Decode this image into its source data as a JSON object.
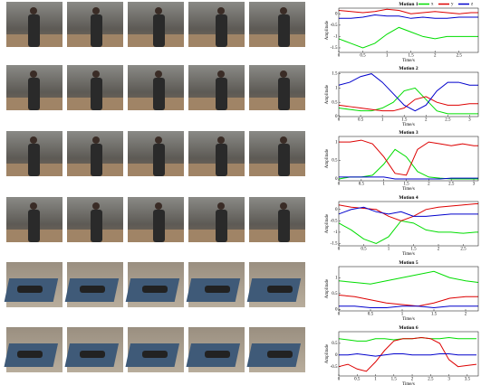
{
  "chart_data": [
    {
      "type": "line",
      "title": "Motion 1",
      "xlabel": "Time/s",
      "ylabel": "Amplitude",
      "legend": "upper right",
      "x": [
        0,
        0.25,
        0.5,
        0.75,
        1,
        1.25,
        1.5,
        1.75,
        2,
        2.25,
        2.5,
        2.75,
        2.9
      ],
      "xlim": [
        0,
        2.9
      ],
      "xticks": [
        0,
        0.5,
        1,
        1.5,
        2,
        2.5
      ],
      "ylim": [
        -1.7,
        0.25
      ],
      "yticks": [
        -1.5,
        -1,
        -0.5,
        0
      ],
      "series": [
        {
          "name": "x",
          "color": "#00dd00",
          "values": [
            -1.1,
            -1.3,
            -1.5,
            -1.3,
            -0.9,
            -0.6,
            -0.8,
            -1.0,
            -1.1,
            -1.0,
            -1.0,
            -1.0,
            -1.0
          ]
        },
        {
          "name": "y",
          "color": "#dd0000",
          "values": [
            0.15,
            0.1,
            0.05,
            0.1,
            0.2,
            0.15,
            0,
            0.05,
            0.1,
            0.05,
            0,
            0.05,
            0.05
          ]
        },
        {
          "name": "z",
          "color": "#0000cc",
          "values": [
            -0.2,
            -0.2,
            -0.15,
            -0.05,
            -0.1,
            -0.1,
            -0.2,
            -0.15,
            -0.2,
            -0.2,
            -0.15,
            -0.15,
            -0.15
          ]
        }
      ]
    },
    {
      "type": "line",
      "title": "Motion 2",
      "xlabel": "Time/s",
      "ylabel": "Amplitude",
      "x": [
        0,
        0.25,
        0.5,
        0.75,
        1,
        1.25,
        1.5,
        1.75,
        2,
        2.25,
        2.5,
        2.75,
        3,
        3.2
      ],
      "xlim": [
        0,
        3.2
      ],
      "xticks": [
        0,
        0.5,
        1,
        1.5,
        2,
        2.5,
        3
      ],
      "ylim": [
        0,
        1.55
      ],
      "yticks": [
        0,
        0.5,
        1,
        1.5
      ],
      "series": [
        {
          "color": "#00dd00",
          "values": [
            0.3,
            0.25,
            0.2,
            0.2,
            0.3,
            0.5,
            0.9,
            1.0,
            0.6,
            0.2,
            0.1,
            0.1,
            0.1,
            0.1
          ]
        },
        {
          "color": "#dd0000",
          "values": [
            0.4,
            0.35,
            0.3,
            0.25,
            0.2,
            0.2,
            0.3,
            0.6,
            0.7,
            0.5,
            0.4,
            0.4,
            0.45,
            0.45
          ]
        },
        {
          "color": "#0000cc",
          "values": [
            1.1,
            1.2,
            1.4,
            1.5,
            1.2,
            0.8,
            0.4,
            0.2,
            0.4,
            0.9,
            1.2,
            1.2,
            1.1,
            1.1
          ]
        }
      ]
    },
    {
      "type": "line",
      "title": "Motion 3",
      "xlabel": "Time/s",
      "ylabel": "Amplitude",
      "x": [
        0,
        0.25,
        0.5,
        0.75,
        1,
        1.25,
        1.5,
        1.75,
        2,
        2.25,
        2.5,
        2.75,
        3,
        3.1
      ],
      "xlim": [
        0,
        3.1
      ],
      "xticks": [
        0,
        0.5,
        1,
        1.5,
        2,
        2.5,
        3
      ],
      "ylim": [
        -0.05,
        1.15
      ],
      "yticks": [
        0,
        0.5,
        1
      ],
      "series": [
        {
          "color": "#00dd00",
          "values": [
            0,
            0.05,
            0.05,
            0.1,
            0.4,
            0.8,
            0.6,
            0.2,
            0.05,
            0.02,
            0,
            0,
            0,
            0
          ]
        },
        {
          "color": "#dd0000",
          "values": [
            1.0,
            1.0,
            1.05,
            0.95,
            0.6,
            0.15,
            0.1,
            0.8,
            1.0,
            0.95,
            0.9,
            0.95,
            0.9,
            0.9
          ]
        },
        {
          "color": "#0000cc",
          "values": [
            0.05,
            0.05,
            0.05,
            0.05,
            0.05,
            0,
            0,
            0,
            0,
            0,
            0.02,
            0.02,
            0.02,
            0.02
          ]
        }
      ]
    },
    {
      "type": "line",
      "title": "Motion 4",
      "xlabel": "Time/s",
      "ylabel": "Amplitude",
      "x": [
        0,
        0.25,
        0.5,
        0.75,
        1,
        1.25,
        1.5,
        1.75,
        2,
        2.25,
        2.5,
        2.75,
        2.8
      ],
      "xlim": [
        0,
        2.8
      ],
      "xticks": [
        0,
        0.5,
        1,
        1.5,
        2,
        2.5
      ],
      "ylim": [
        -1.6,
        0.35
      ],
      "yticks": [
        -1.5,
        -1,
        -0.5,
        0
      ],
      "series": [
        {
          "color": "#00dd00",
          "values": [
            -0.6,
            -0.9,
            -1.3,
            -1.5,
            -1.2,
            -0.5,
            -0.6,
            -0.9,
            -1.0,
            -1.0,
            -1.05,
            -1.0,
            -1.0
          ]
        },
        {
          "color": "#dd0000",
          "values": [
            0.2,
            0.1,
            0.05,
            0,
            -0.3,
            -0.5,
            -0.3,
            0,
            0.1,
            0.15,
            0.2,
            0.25,
            0.25
          ]
        },
        {
          "color": "#0000cc",
          "values": [
            -0.2,
            0,
            0.1,
            -0.1,
            -0.2,
            -0.1,
            -0.3,
            -0.3,
            -0.25,
            -0.2,
            -0.2,
            -0.2,
            -0.2
          ]
        }
      ]
    },
    {
      "type": "line",
      "title": "Motion 5",
      "xlabel": "Time/s",
      "ylabel": "Amplitude",
      "x": [
        0,
        0.25,
        0.5,
        0.75,
        1,
        1.25,
        1.5,
        1.75,
        2,
        2.2
      ],
      "xlim": [
        0,
        2.2
      ],
      "xticks": [
        0,
        0.5,
        1,
        1.5,
        2
      ],
      "ylim": [
        -0.05,
        1.35
      ],
      "yticks": [
        0,
        0.5,
        1
      ],
      "series": [
        {
          "color": "#00dd00",
          "values": [
            0.9,
            0.85,
            0.8,
            0.9,
            1.0,
            1.1,
            1.2,
            1.0,
            0.9,
            0.85
          ]
        },
        {
          "color": "#dd0000",
          "values": [
            0.45,
            0.4,
            0.3,
            0.2,
            0.15,
            0.1,
            0.2,
            0.35,
            0.4,
            0.4
          ]
        },
        {
          "color": "#0000cc",
          "values": [
            0.1,
            0.1,
            0.05,
            0.05,
            0.1,
            0.1,
            0.05,
            0.1,
            0.1,
            0.1
          ]
        }
      ]
    },
    {
      "type": "line",
      "title": "Motion 6",
      "xlabel": "Time/s",
      "ylabel": "Amplitude",
      "x": [
        0,
        0.25,
        0.5,
        0.75,
        1,
        1.25,
        1.5,
        1.75,
        2,
        2.25,
        2.5,
        2.75,
        3,
        3.25,
        3.5,
        3.75
      ],
      "xlim": [
        0,
        3.8
      ],
      "xticks": [
        0,
        0.5,
        1,
        1.5,
        2,
        2.5,
        3,
        3.5
      ],
      "ylim": [
        -0.9,
        1.0
      ],
      "yticks": [
        -0.5,
        0,
        0.5
      ],
      "series": [
        {
          "color": "#00dd00",
          "values": [
            0.7,
            0.65,
            0.6,
            0.6,
            0.7,
            0.7,
            0.65,
            0.7,
            0.7,
            0.75,
            0.7,
            0.7,
            0.75,
            0.7,
            0.7,
            0.7
          ]
        },
        {
          "color": "#dd0000",
          "values": [
            -0.5,
            -0.4,
            -0.6,
            -0.7,
            -0.3,
            0.2,
            0.6,
            0.7,
            0.7,
            0.75,
            0.7,
            0.5,
            -0.2,
            -0.5,
            -0.45,
            -0.4
          ]
        },
        {
          "color": "#0000cc",
          "values": [
            0,
            0,
            0.05,
            0,
            -0.05,
            0,
            0.05,
            0.05,
            0,
            0,
            0,
            0.05,
            0.05,
            0,
            0,
            0
          ]
        }
      ]
    }
  ]
}
